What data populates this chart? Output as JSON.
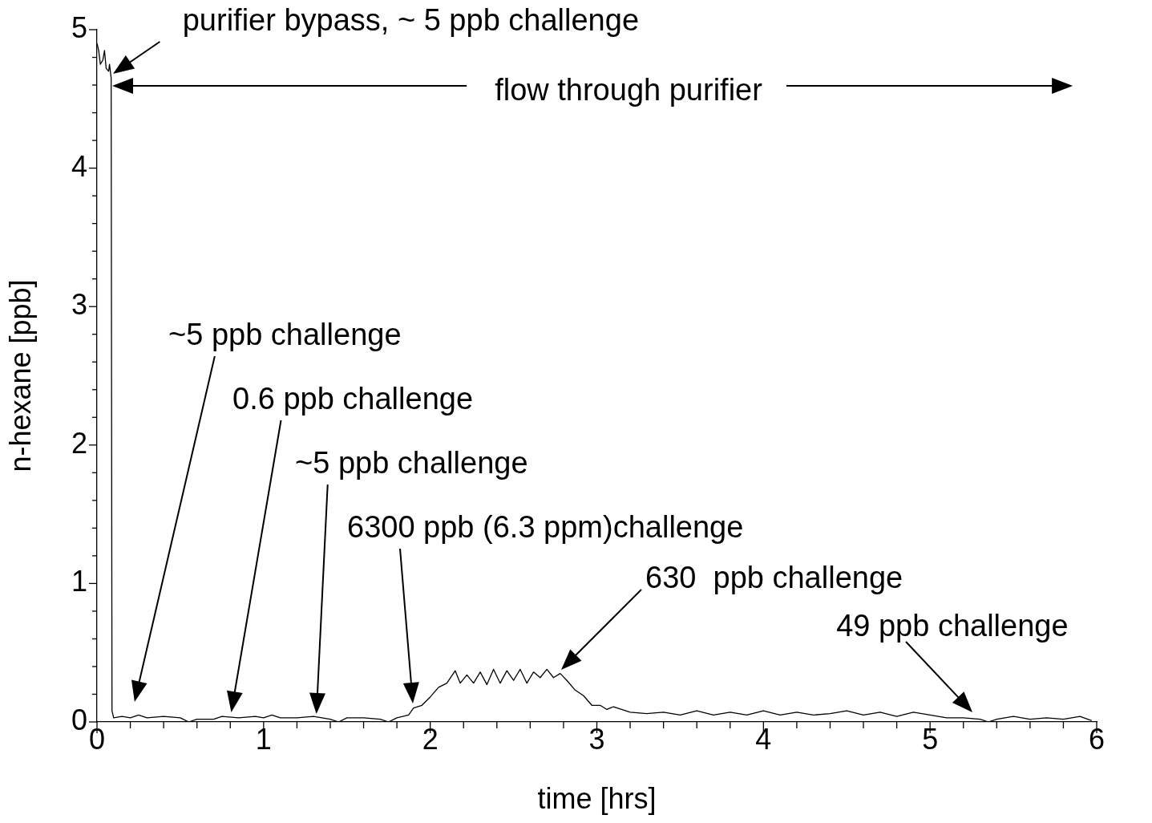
{
  "chart_data": {
    "type": "line",
    "xlabel": "time [hrs]",
    "ylabel": "n-hexane [ppb]",
    "xlim": [
      0,
      6
    ],
    "ylim": [
      0,
      5
    ],
    "xticks": [
      0,
      {
        "value": 0.2,
        "label": null
      },
      {
        "value": 0.4,
        "label": null
      },
      {
        "value": 0.6,
        "label": null
      },
      {
        "value": 0.8,
        "label": null
      },
      1,
      {
        "value": 1.2,
        "label": null
      },
      {
        "value": 1.4,
        "label": null
      },
      {
        "value": 1.6,
        "label": null
      },
      {
        "value": 1.8,
        "label": null
      },
      2,
      {
        "value": 2.2,
        "label": null
      },
      {
        "value": 2.4,
        "label": null
      },
      {
        "value": 2.6,
        "label": null
      },
      {
        "value": 2.8,
        "label": null
      },
      3,
      {
        "value": 3.2,
        "label": null
      },
      {
        "value": 3.4,
        "label": null
      },
      {
        "value": 3.6,
        "label": null
      },
      {
        "value": 3.8,
        "label": null
      },
      4,
      {
        "value": 4.2,
        "label": null
      },
      {
        "value": 4.4,
        "label": null
      },
      {
        "value": 4.6,
        "label": null
      },
      {
        "value": 4.8,
        "label": null
      },
      5,
      {
        "value": 5.2,
        "label": null
      },
      {
        "value": 5.4,
        "label": null
      },
      {
        "value": 5.6,
        "label": null
      },
      {
        "value": 5.8,
        "label": null
      },
      6
    ],
    "yticks": [
      0,
      {
        "value": 0.2,
        "label": null
      },
      {
        "value": 0.4,
        "label": null
      },
      {
        "value": 0.6,
        "label": null
      },
      {
        "value": 0.8,
        "label": null
      },
      1,
      {
        "value": 1.2,
        "label": null
      },
      {
        "value": 1.4,
        "label": null
      },
      {
        "value": 1.6,
        "label": null
      },
      {
        "value": 1.8,
        "label": null
      },
      2,
      {
        "value": 2.2,
        "label": null
      },
      {
        "value": 2.4,
        "label": null
      },
      {
        "value": 2.6,
        "label": null
      },
      {
        "value": 2.8,
        "label": null
      },
      3,
      {
        "value": 3.2,
        "label": null
      },
      {
        "value": 3.4,
        "label": null
      },
      {
        "value": 3.6,
        "label": null
      },
      {
        "value": 3.8,
        "label": null
      },
      4,
      {
        "value": 4.2,
        "label": null
      },
      {
        "value": 4.4,
        "label": null
      },
      {
        "value": 4.6,
        "label": null
      },
      {
        "value": 4.8,
        "label": null
      },
      5
    ],
    "grid": false,
    "legend": false,
    "marker": "none",
    "line_style": "solid",
    "series": [
      {
        "color": "#000000",
        "x": [
          0,
          0.01,
          0.02,
          0.035,
          0.045,
          0.055,
          0.07,
          0.075,
          0.085,
          0.09,
          0.1,
          0.15,
          0.2,
          0.25,
          0.3,
          0.4,
          0.5,
          0.55,
          0.6,
          0.7,
          0.75,
          0.85,
          0.95,
          1.0,
          1.05,
          1.1,
          1.2,
          1.3,
          1.4,
          1.45,
          1.5,
          1.6,
          1.7,
          1.75,
          1.8,
          1.87,
          1.9,
          1.95,
          2.0,
          2.05,
          2.1,
          2.15,
          2.18,
          2.22,
          2.26,
          2.3,
          2.34,
          2.38,
          2.42,
          2.46,
          2.5,
          2.54,
          2.58,
          2.62,
          2.66,
          2.7,
          2.74,
          2.78,
          2.82,
          2.87,
          2.92,
          2.97,
          3.02,
          3.06,
          3.1,
          3.2,
          3.3,
          3.4,
          3.5,
          3.6,
          3.7,
          3.8,
          3.9,
          4.0,
          4.1,
          4.2,
          4.3,
          4.4,
          4.5,
          4.6,
          4.7,
          4.8,
          4.9,
          5.0,
          5.1,
          5.2,
          5.3,
          5.35,
          5.4,
          5.5,
          5.6,
          5.7,
          5.8,
          5.9,
          5.97
        ],
        "values": [
          4.9,
          4.85,
          4.75,
          4.78,
          4.85,
          4.72,
          4.7,
          4.75,
          4.65,
          0.08,
          0.03,
          0.04,
          0.03,
          0.05,
          0.03,
          0.04,
          0.03,
          0.0,
          0.02,
          0.02,
          0.04,
          0.03,
          0.04,
          0.03,
          0.05,
          0.03,
          0.03,
          0.04,
          0.02,
          0.0,
          0.03,
          0.03,
          0.02,
          0.0,
          0.03,
          0.05,
          0.1,
          0.12,
          0.18,
          0.25,
          0.28,
          0.37,
          0.28,
          0.34,
          0.28,
          0.36,
          0.27,
          0.38,
          0.28,
          0.37,
          0.3,
          0.38,
          0.28,
          0.36,
          0.32,
          0.38,
          0.32,
          0.35,
          0.3,
          0.23,
          0.19,
          0.12,
          0.12,
          0.09,
          0.11,
          0.07,
          0.06,
          0.07,
          0.05,
          0.08,
          0.05,
          0.07,
          0.05,
          0.08,
          0.05,
          0.07,
          0.05,
          0.06,
          0.08,
          0.05,
          0.07,
          0.04,
          0.07,
          0.05,
          0.03,
          0.03,
          0.02,
          0.0,
          0.02,
          0.04,
          0.02,
          0.03,
          0.02,
          0.04,
          0.01
        ]
      }
    ],
    "annotations": [
      {
        "text": "purifier bypass, ~ 5 ppb challenge",
        "x": 0.09,
        "y": 4.7
      },
      "flow through purifier",
      "~5 ppb challenge",
      "0.6 ppb challenge",
      "~5 ppb challenge",
      "6300 ppb (6.3 ppm)challenge",
      "630  ppb challenge",
      {
        "text": "49 ppb challenge",
        "x": 5.25,
        "y": 0.03
      }
    ]
  }
}
